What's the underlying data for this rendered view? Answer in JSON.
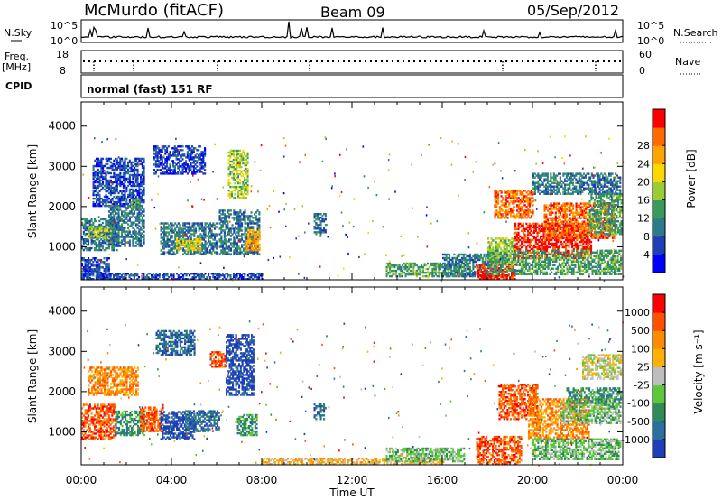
{
  "header": {
    "station": "McMurdo (fitACF)",
    "beam": "Beam 09",
    "date": "05/Sep/2012"
  },
  "strip": {
    "nsky_label": "N.Sky",
    "nsearch_label": "N.Search",
    "nsky_ticks": [
      "10^5",
      "10^0"
    ],
    "nsearch_ticks": [
      "10^5",
      "10^0"
    ],
    "freq_label_1": "Freq.",
    "freq_label_2": "[MHz]",
    "freq_ticks": [
      "18",
      "8"
    ],
    "nave_label": "Nave",
    "nave_ticks": [
      "60",
      "0"
    ],
    "cpid_label": "CPID",
    "cpid_text": "normal (fast) 151 RF"
  },
  "chart_data": [
    {
      "type": "heatmap",
      "name": "power",
      "ylabel": "Slant Range [km]",
      "y_ticks": [
        1000,
        2000,
        3000,
        4000
      ],
      "ylim": [
        180,
        4600
      ],
      "x_ticks": [
        "00:00",
        "04:00",
        "08:00",
        "12:00",
        "16:00",
        "20:00",
        "00:00"
      ],
      "xlim": [
        0,
        24
      ],
      "colorbar": {
        "title": "Power [dB]",
        "ticks": [
          4,
          8,
          12,
          16,
          20,
          24,
          28
        ],
        "colors": [
          "#0000ff",
          "#1f3fb8",
          "#2d7a8a",
          "#3a9a5a",
          "#9acd32",
          "#ffd700",
          "#ffa500",
          "#ff6a00",
          "#ff0000"
        ]
      },
      "regions": [
        {
          "t0": 0.0,
          "t1": 1.2,
          "r0": 200,
          "r1": 700,
          "level": 1
        },
        {
          "t0": 0.0,
          "t1": 1.6,
          "r0": 900,
          "r1": 1700,
          "level": 2
        },
        {
          "t0": 0.3,
          "t1": 1.3,
          "r0": 1200,
          "r1": 1500,
          "level": 4
        },
        {
          "t0": 0.5,
          "t1": 2.8,
          "r0": 2000,
          "r1": 3200,
          "level": 1
        },
        {
          "t0": 1.2,
          "t1": 2.8,
          "r0": 1000,
          "r1": 2000,
          "level": 2
        },
        {
          "t0": 2.2,
          "t1": 2.6,
          "r0": 1900,
          "r1": 2200,
          "level": 3
        },
        {
          "t0": 3.2,
          "t1": 5.5,
          "r0": 2800,
          "r1": 3500,
          "level": 1
        },
        {
          "t0": 3.5,
          "t1": 6.0,
          "r0": 800,
          "r1": 1600,
          "level": 2
        },
        {
          "t0": 4.2,
          "t1": 5.3,
          "r0": 900,
          "r1": 1200,
          "level": 5
        },
        {
          "t0": 6.1,
          "t1": 7.9,
          "r0": 800,
          "r1": 1900,
          "level": 2
        },
        {
          "t0": 6.5,
          "t1": 7.4,
          "r0": 2200,
          "r1": 3400,
          "level": 4
        },
        {
          "t0": 7.3,
          "t1": 7.9,
          "r0": 900,
          "r1": 1400,
          "level": 6
        },
        {
          "t0": 0.0,
          "t1": 8.0,
          "r0": 180,
          "r1": 350,
          "level": 1
        },
        {
          "t0": 10.3,
          "t1": 10.8,
          "r0": 1300,
          "r1": 1800,
          "level": 2
        },
        {
          "t0": 13.5,
          "t1": 17.0,
          "r0": 250,
          "r1": 600,
          "level": 3
        },
        {
          "t0": 16.0,
          "t1": 18.5,
          "r0": 250,
          "r1": 800,
          "level": 2
        },
        {
          "t0": 17.5,
          "t1": 19.2,
          "r0": 180,
          "r1": 550,
          "level": 8
        },
        {
          "t0": 18.0,
          "t1": 19.2,
          "r0": 600,
          "r1": 1200,
          "level": 4
        },
        {
          "t0": 18.3,
          "t1": 20.0,
          "r0": 1700,
          "r1": 2400,
          "level": 7
        },
        {
          "t0": 19.2,
          "t1": 22.6,
          "r0": 700,
          "r1": 1600,
          "level": 8
        },
        {
          "t0": 20.5,
          "t1": 23.6,
          "r0": 1200,
          "r1": 2100,
          "level": 7
        },
        {
          "t0": 22.5,
          "t1": 24.0,
          "r0": 1300,
          "r1": 2300,
          "level": 3
        },
        {
          "t0": 20.0,
          "t1": 24.0,
          "r0": 2300,
          "r1": 2800,
          "level": 2
        },
        {
          "t0": 18.0,
          "t1": 24.0,
          "r0": 300,
          "r1": 900,
          "level": 3
        }
      ]
    },
    {
      "type": "heatmap",
      "name": "velocity",
      "ylabel": "Slant Range [km]",
      "y_ticks": [
        1000,
        2000,
        3000,
        4000
      ],
      "ylim": [
        180,
        4600
      ],
      "x_ticks": [
        "00:00",
        "04:00",
        "08:00",
        "12:00",
        "16:00",
        "20:00",
        "00:00"
      ],
      "xlim": [
        0,
        24
      ],
      "xlabel": "Time UT",
      "colorbar": {
        "title": "Velocity [m s⁻¹]",
        "ticks": [
          "1000",
          "500",
          "100",
          "25",
          "-25",
          "-100",
          "-500",
          "-1000"
        ],
        "colors": [
          "#1f3fb8",
          "#2d6ea0",
          "#2e8b57",
          "#5cc83c",
          "#bebebe",
          "#ffb000",
          "#ff8c00",
          "#ff5000",
          "#ff0000"
        ]
      },
      "regions": [
        {
          "t0": 0.0,
          "t1": 1.5,
          "r0": 800,
          "r1": 1700,
          "level": 7
        },
        {
          "t0": 0.3,
          "t1": 2.5,
          "r0": 1900,
          "r1": 2600,
          "level": 6
        },
        {
          "t0": 1.5,
          "t1": 2.8,
          "r0": 900,
          "r1": 1500,
          "level": 2
        },
        {
          "t0": 2.6,
          "t1": 3.6,
          "r0": 1000,
          "r1": 1600,
          "level": 7
        },
        {
          "t0": 3.5,
          "t1": 5.0,
          "r0": 800,
          "r1": 1500,
          "level": 0
        },
        {
          "t0": 4.6,
          "t1": 6.1,
          "r0": 1000,
          "r1": 1500,
          "level": 1
        },
        {
          "t0": 5.7,
          "t1": 6.4,
          "r0": 2600,
          "r1": 3000,
          "level": 7
        },
        {
          "t0": 6.4,
          "t1": 7.6,
          "r0": 1900,
          "r1": 3400,
          "level": 0
        },
        {
          "t0": 6.9,
          "t1": 7.8,
          "r0": 900,
          "r1": 1400,
          "level": 2
        },
        {
          "t0": 3.3,
          "t1": 5.0,
          "r0": 2900,
          "r1": 3500,
          "level": 1
        },
        {
          "t0": 10.3,
          "t1": 10.8,
          "r0": 1300,
          "r1": 1700,
          "level": 1
        },
        {
          "t0": 8.0,
          "t1": 16.0,
          "r0": 180,
          "r1": 350,
          "level": 5
        },
        {
          "t0": 13.5,
          "t1": 17.0,
          "r0": 250,
          "r1": 600,
          "level": 3
        },
        {
          "t0": 17.5,
          "t1": 19.5,
          "r0": 180,
          "r1": 900,
          "level": 7
        },
        {
          "t0": 18.5,
          "t1": 20.2,
          "r0": 1300,
          "r1": 2200,
          "level": 7
        },
        {
          "t0": 19.8,
          "t1": 22.5,
          "r0": 800,
          "r1": 1800,
          "level": 6
        },
        {
          "t0": 21.2,
          "t1": 24.0,
          "r0": 1200,
          "r1": 1700,
          "level": 3
        },
        {
          "t0": 21.5,
          "t1": 24.0,
          "r0": 1700,
          "r1": 2100,
          "level": 2
        },
        {
          "t0": 22.2,
          "t1": 24.0,
          "r0": 2300,
          "r1": 2900,
          "level": 4
        },
        {
          "t0": 20.0,
          "t1": 24.0,
          "r0": 300,
          "r1": 800,
          "level": 3
        }
      ]
    }
  ]
}
